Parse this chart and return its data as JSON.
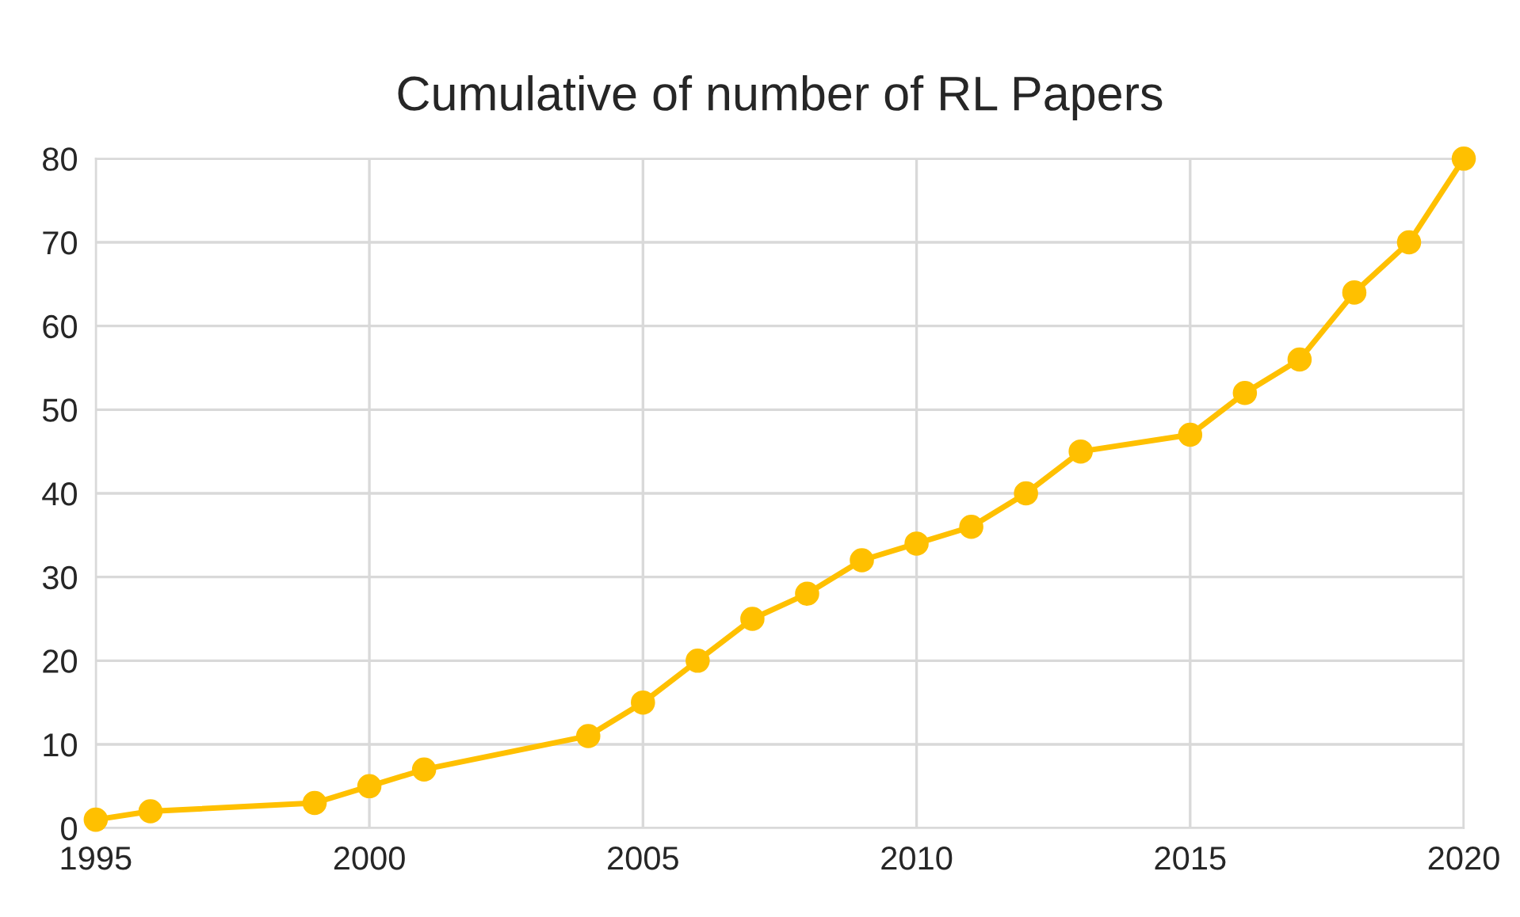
{
  "chart_data": {
    "type": "line",
    "title": "Cumulative of number of RL Papers",
    "x": [
      1995,
      1996,
      1999,
      2000,
      2001,
      2004,
      2005,
      2006,
      2007,
      2008,
      2009,
      2010,
      2011,
      2012,
      2013,
      2015,
      2016,
      2017,
      2018,
      2019,
      2020
    ],
    "series": [
      {
        "color": "#ffc000",
        "values": [
          1,
          2,
          3,
          5,
          7,
          11,
          15,
          20,
          25,
          28,
          32,
          34,
          36,
          40,
          45,
          47,
          52,
          56,
          64,
          70,
          80
        ]
      }
    ],
    "xlim": [
      1995,
      2020
    ],
    "xticks": [
      1995,
      2000,
      2005,
      2010,
      2015,
      2020
    ],
    "ylim": [
      0,
      80
    ],
    "yticks": [
      0,
      10,
      20,
      30,
      40,
      50,
      60,
      70,
      80
    ],
    "grid": true,
    "marker": "circle",
    "line_style": "solid",
    "legend": false
  }
}
